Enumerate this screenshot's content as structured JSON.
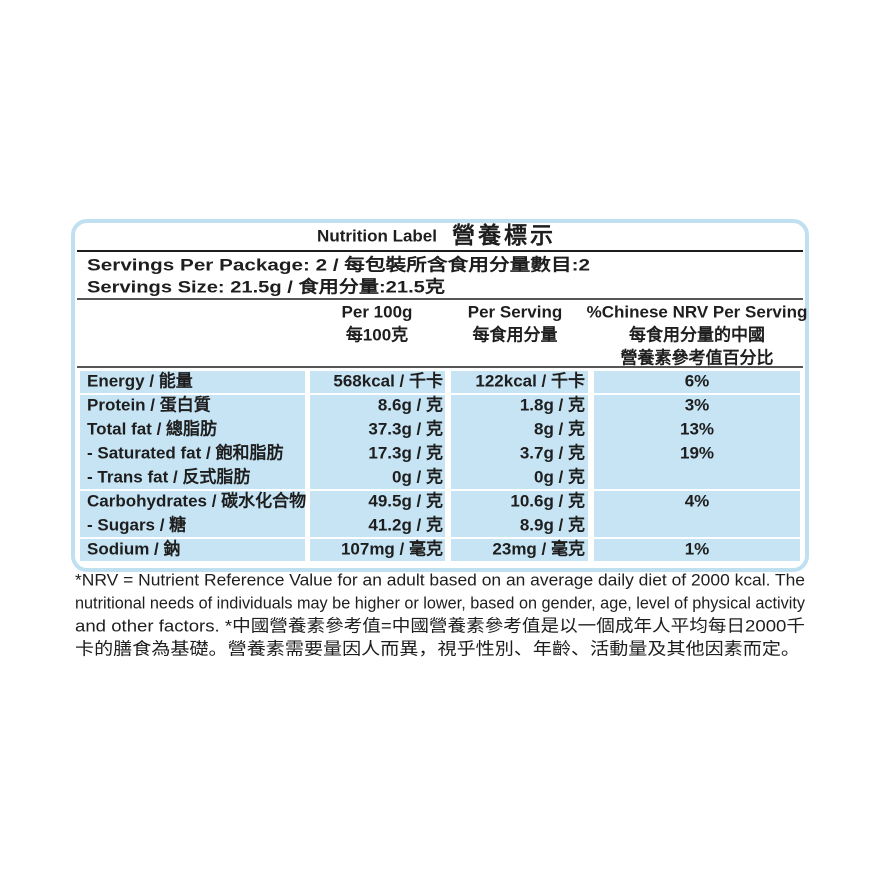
{
  "header": {
    "title_en": "Nutrition Label",
    "title_zh": "營養標示"
  },
  "servings": [
    "Servings Per Package: 2 / 每包裝所含食用分量數目:2",
    "Servings Size: 21.5g / 食用分量:21.5克"
  ],
  "table": {
    "columns": [
      [
        "Per 100g",
        "每100克"
      ],
      [
        "Per Serving",
        "每食用分量"
      ],
      [
        "%Chinese NRV Per Serving",
        "每食用分量的中國",
        "營養素參考值百分比"
      ]
    ],
    "rows": [
      {
        "name": "Energy / 能量",
        "per_100g": "568kcal / 千卡",
        "per_serving": "122kcal / 千卡",
        "nrv": "6%"
      },
      {
        "name": "Protein / 蛋白質",
        "per_100g": "8.6g / 克",
        "per_serving": "1.8g / 克",
        "nrv": "3%"
      },
      {
        "name": "Total fat / 總脂肪",
        "per_100g": "37.3g / 克",
        "per_serving": "8g / 克",
        "nrv": "13%"
      },
      {
        "name": " - Saturated fat / 飽和脂肪",
        "per_100g": "17.3g / 克",
        "per_serving": "3.7g / 克",
        "nrv": "19%"
      },
      {
        "name": " - Trans fat / 反式脂肪",
        "per_100g": "0g / 克",
        "per_serving": "0g / 克"
      },
      {
        "name": "Carbohydrates / 碳水化合物",
        "per_100g": "49.5g / 克",
        "per_serving": "10.6g / 克",
        "nrv": "4%"
      },
      {
        "name": " - Sugars / 糖",
        "per_100g": "41.2g / 克",
        "per_serving": "8.9g / 克"
      },
      {
        "name": "Sodium / 鈉",
        "per_100g": "107mg / 毫克",
        "per_serving": "23mg / 毫克",
        "nrv": "1%"
      }
    ]
  },
  "footnote": [
    "*NRV = Nutrient Reference Value for an adult based on an average daily diet of 2000 kcal. The",
    "nutritional needs of individuals may be higher or lower, based on gender, age, level of physical activity",
    "and other factors. *中國營養素參考值=中國營養素參考值是以一個成年人平均每日2000千",
    "卡的膳食為基礎。營養素需要量因人而異，視乎性別、年齡、活動量及其他因素而定。"
  ]
}
